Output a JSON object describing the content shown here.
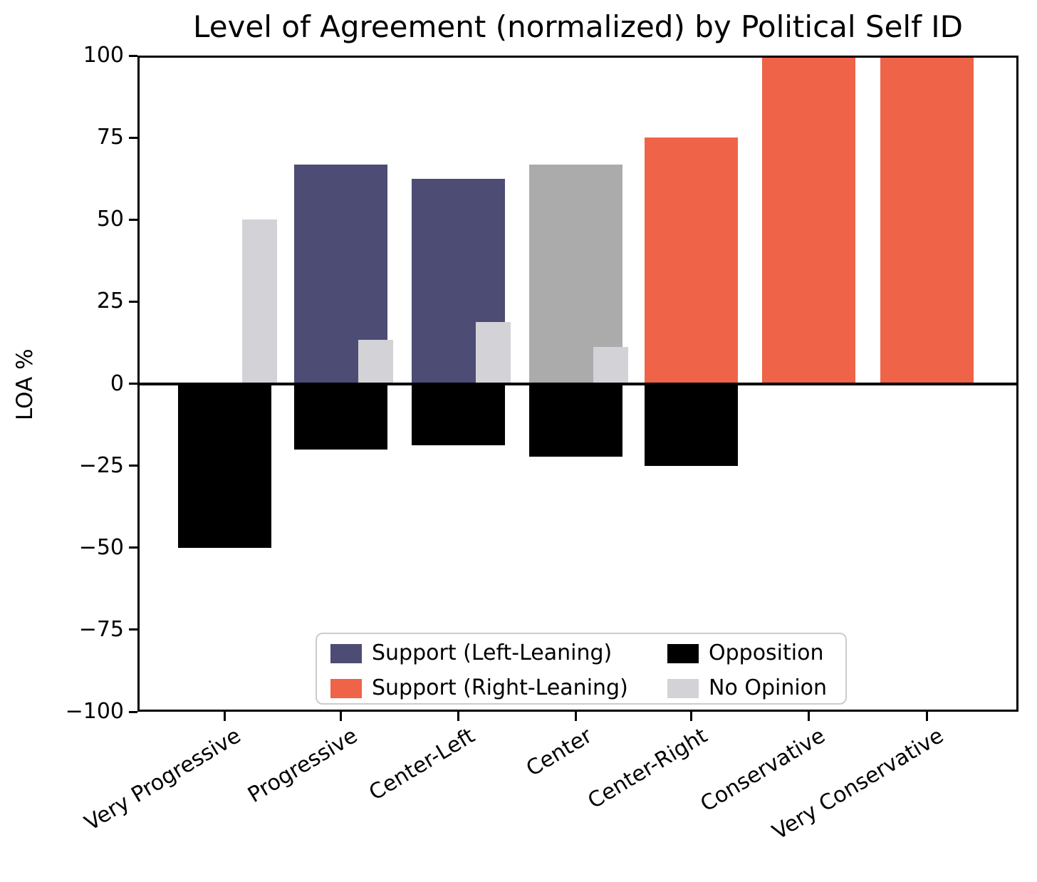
{
  "chart_data": {
    "type": "bar",
    "title": "Level of Agreement (normalized) by Political Self ID",
    "ylabel": "LOA %",
    "xlabel": "",
    "ylim": [
      -100,
      100
    ],
    "grid": false,
    "legend_position": "lower center inside plot, 2 columns",
    "yticks": [
      {
        "label": "100",
        "value": 100
      },
      {
        "label": "75",
        "value": 75
      },
      {
        "label": "50",
        "value": 50
      },
      {
        "label": "25",
        "value": 25
      },
      {
        "label": "0",
        "value": 0
      },
      {
        "label": "−25",
        "value": -25
      },
      {
        "label": "−50",
        "value": -50
      },
      {
        "label": "−75",
        "value": -75
      },
      {
        "label": "−100",
        "value": -100
      }
    ],
    "categories": [
      "Very Progressive",
      "Progressive",
      "Center-Left",
      "Center",
      "Center-Right",
      "Conservative",
      "Very Conservative"
    ],
    "series": [
      {
        "name": "Support",
        "values": [
          0,
          66.7,
          62.5,
          66.7,
          75,
          100,
          100
        ],
        "lean": [
          "none",
          "left",
          "left",
          "center",
          "right",
          "right",
          "right"
        ]
      },
      {
        "name": "Opposition",
        "values": [
          -50,
          -20,
          -18.8,
          -22.2,
          -25,
          0,
          0
        ]
      },
      {
        "name": "No Opinion",
        "values": [
          50,
          13.3,
          18.8,
          11.1,
          0,
          0,
          0
        ]
      }
    ],
    "colors": {
      "left": "#4d4c75",
      "right": "#ef6349",
      "center": "#ababab",
      "opposition": "#000000",
      "no_opinion": "#d3d3d7"
    },
    "legend": [
      {
        "label": "Support (Left-Leaning)",
        "color_key": "left"
      },
      {
        "label": "Support (Right-Leaning)",
        "color_key": "right"
      },
      {
        "label": "Opposition",
        "color_key": "opposition"
      },
      {
        "label": "No Opinion",
        "color_key": "no_opinion"
      }
    ]
  }
}
